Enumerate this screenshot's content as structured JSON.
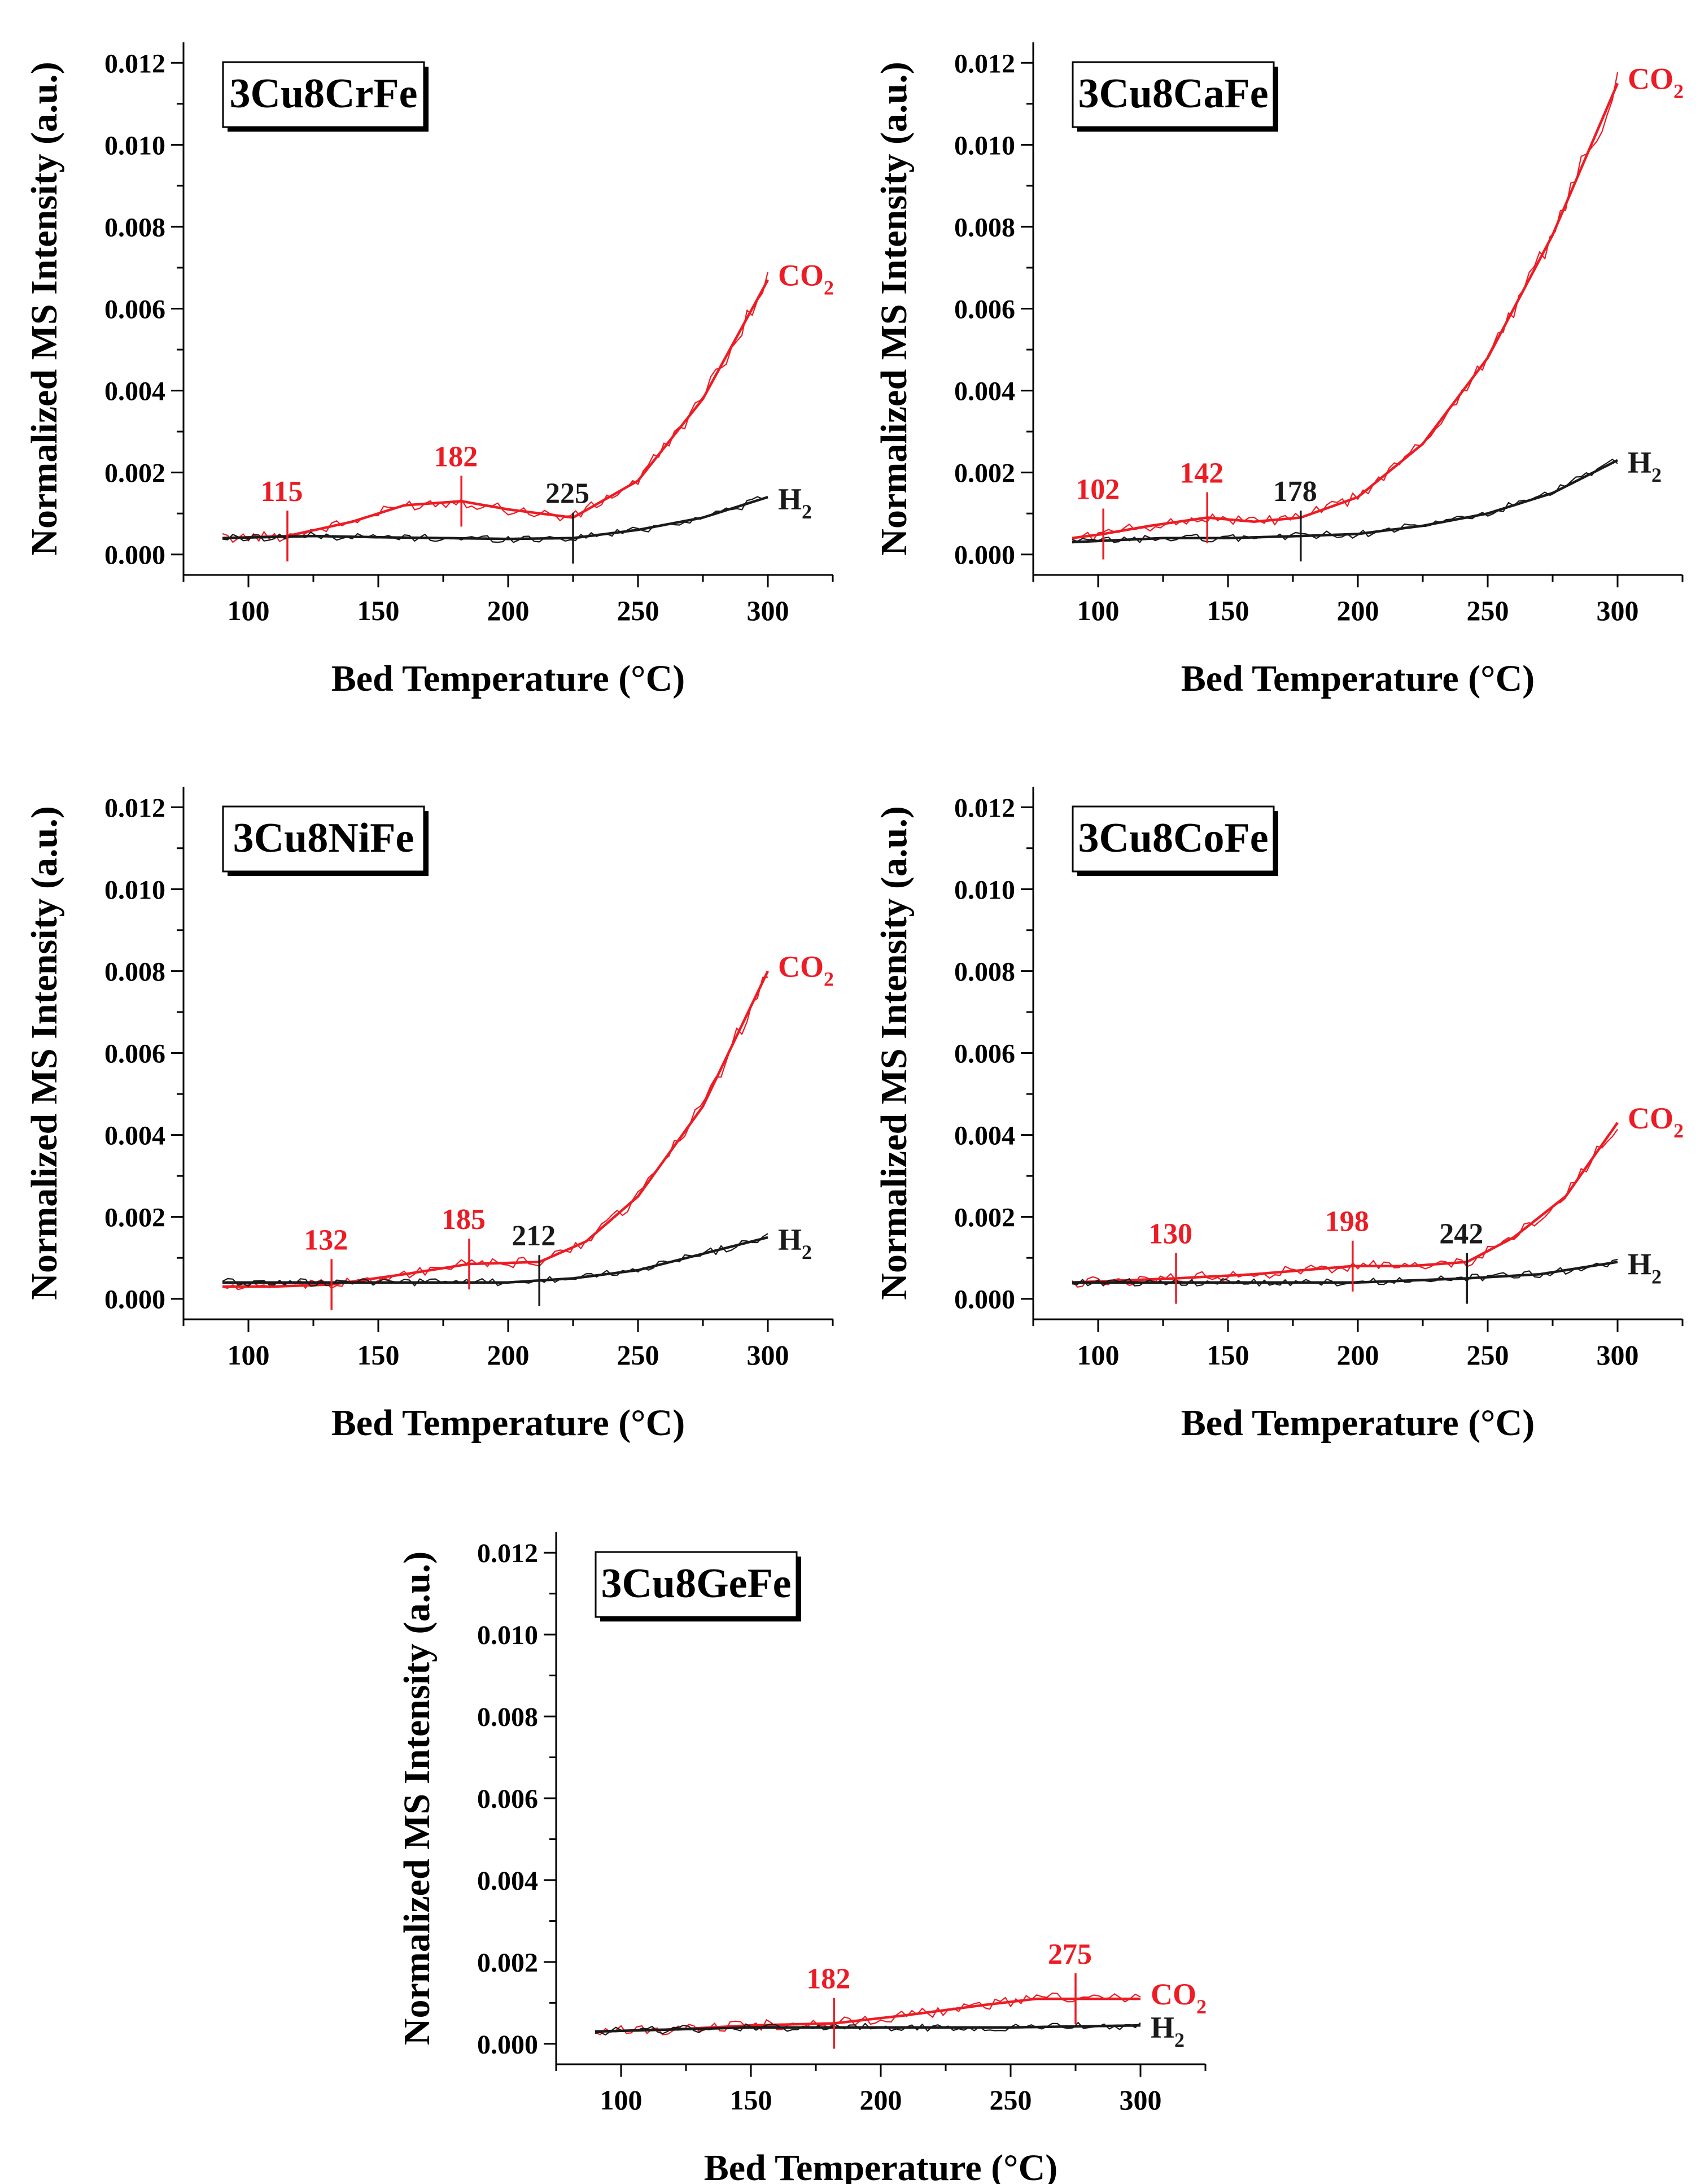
{
  "colors": {
    "co2": "#ed1c24",
    "h2": "#1a1a1a",
    "axis": "#000000"
  },
  "chart_data": [
    {
      "type": "line",
      "title": "3Cu8CrFe",
      "xlabel": "Bed Temperature (°C)",
      "ylabel": "Normalized MS Intensity (a.u.)",
      "xlim": [
        75,
        325
      ],
      "ylim": [
        -0.0005,
        0.0125
      ],
      "xticks": [
        100,
        150,
        200,
        250,
        300
      ],
      "yticks": [
        0.0,
        0.002,
        0.004,
        0.006,
        0.008,
        0.01,
        0.012
      ],
      "xtick_labels": [
        "100",
        "150",
        "200",
        "250",
        "300"
      ],
      "ytick_labels": [
        "0.000",
        "0.002",
        "0.004",
        "0.006",
        "0.008",
        "0.010",
        "0.012"
      ],
      "series": [
        {
          "name": "CO2",
          "label_main": "CO",
          "label_sub": "2",
          "color": "#ed1c24",
          "x": [
            90,
            115,
            140,
            160,
            182,
            200,
            225,
            250,
            275,
            300
          ],
          "y": [
            0.0004,
            0.00045,
            0.0008,
            0.0012,
            0.0013,
            0.0011,
            0.0009,
            0.0018,
            0.0038,
            0.0067
          ]
        },
        {
          "name": "H2",
          "label_main": "H",
          "label_sub": "2",
          "color": "#1a1a1a",
          "x": [
            90,
            125,
            150,
            175,
            200,
            225,
            250,
            275,
            300
          ],
          "y": [
            0.0004,
            0.00045,
            0.00042,
            0.0004,
            0.00038,
            0.0004,
            0.0006,
            0.0009,
            0.0014
          ]
        }
      ],
      "annotations": [
        {
          "x": 115,
          "text": "115",
          "series": "CO2"
        },
        {
          "x": 182,
          "text": "182",
          "series": "CO2"
        },
        {
          "x": 225,
          "text": "225",
          "series": "H2"
        }
      ]
    },
    {
      "type": "line",
      "title": "3Cu8CaFe",
      "xlabel": "Bed Temperature (°C)",
      "ylabel": "Normalized MS Intensity (a.u.)",
      "xlim": [
        75,
        325
      ],
      "ylim": [
        -0.0005,
        0.0125
      ],
      "xticks": [
        100,
        150,
        200,
        250,
        300
      ],
      "yticks": [
        0.0,
        0.002,
        0.004,
        0.006,
        0.008,
        0.01,
        0.012
      ],
      "xtick_labels": [
        "100",
        "150",
        "200",
        "250",
        "300"
      ],
      "ytick_labels": [
        "0.000",
        "0.002",
        "0.004",
        "0.006",
        "0.008",
        "0.010",
        "0.012"
      ],
      "series": [
        {
          "name": "CO2",
          "label_main": "CO",
          "label_sub": "2",
          "color": "#ed1c24",
          "x": [
            90,
            102,
            120,
            142,
            160,
            178,
            200,
            225,
            250,
            275,
            300
          ],
          "y": [
            0.0004,
            0.0005,
            0.0007,
            0.0009,
            0.0008,
            0.0009,
            0.0014,
            0.0027,
            0.0048,
            0.0078,
            0.0115
          ]
        },
        {
          "name": "H2",
          "label_main": "H",
          "label_sub": "2",
          "color": "#1a1a1a",
          "x": [
            90,
            125,
            150,
            178,
            200,
            225,
            250,
            275,
            300
          ],
          "y": [
            0.0003,
            0.0004,
            0.0004,
            0.00045,
            0.0005,
            0.0007,
            0.001,
            0.0015,
            0.0023
          ]
        }
      ],
      "annotations": [
        {
          "x": 102,
          "text": "102",
          "series": "CO2"
        },
        {
          "x": 142,
          "text": "142",
          "series": "CO2"
        },
        {
          "x": 178,
          "text": "178",
          "series": "H2"
        }
      ]
    },
    {
      "type": "line",
      "title": "3Cu8NiFe",
      "xlabel": "Bed Temperature (°C)",
      "ylabel": "Normalized MS Intensity (a.u.)",
      "xlim": [
        75,
        325
      ],
      "ylim": [
        -0.0005,
        0.0125
      ],
      "xticks": [
        100,
        150,
        200,
        250,
        300
      ],
      "yticks": [
        0.0,
        0.002,
        0.004,
        0.006,
        0.008,
        0.01,
        0.012
      ],
      "xtick_labels": [
        "100",
        "150",
        "200",
        "250",
        "300"
      ],
      "ytick_labels": [
        "0.000",
        "0.002",
        "0.004",
        "0.006",
        "0.008",
        "0.010",
        "0.012"
      ],
      "series": [
        {
          "name": "CO2",
          "label_main": "CO",
          "label_sub": "2",
          "color": "#ed1c24",
          "x": [
            90,
            110,
            132,
            160,
            185,
            212,
            230,
            250,
            275,
            300
          ],
          "y": [
            0.0003,
            0.0003,
            0.00035,
            0.0006,
            0.00085,
            0.0009,
            0.0014,
            0.0025,
            0.0047,
            0.008
          ]
        },
        {
          "name": "H2",
          "label_main": "H",
          "label_sub": "2",
          "color": "#1a1a1a",
          "x": [
            90,
            125,
            150,
            175,
            200,
            225,
            250,
            275,
            300
          ],
          "y": [
            0.0004,
            0.0004,
            0.0004,
            0.0004,
            0.0004,
            0.0005,
            0.0007,
            0.0011,
            0.0015
          ]
        }
      ],
      "annotations": [
        {
          "x": 132,
          "text": "132",
          "series": "CO2"
        },
        {
          "x": 185,
          "text": "185",
          "series": "CO2"
        },
        {
          "x": 212,
          "text": "212",
          "series": "H2"
        }
      ]
    },
    {
      "type": "line",
      "title": "3Cu8CoFe",
      "xlabel": "Bed Temperature (°C)",
      "ylabel": "Normalized MS Intensity (a.u.)",
      "xlim": [
        75,
        325
      ],
      "ylim": [
        -0.0005,
        0.0125
      ],
      "xticks": [
        100,
        150,
        200,
        250,
        300
      ],
      "yticks": [
        0.0,
        0.002,
        0.004,
        0.006,
        0.008,
        0.01,
        0.012
      ],
      "xtick_labels": [
        "100",
        "150",
        "200",
        "250",
        "300"
      ],
      "ytick_labels": [
        "0.000",
        "0.002",
        "0.004",
        "0.006",
        "0.008",
        "0.010",
        "0.012"
      ],
      "series": [
        {
          "name": "CO2",
          "label_main": "CO",
          "label_sub": "2",
          "color": "#ed1c24",
          "x": [
            90,
            130,
            160,
            198,
            220,
            242,
            260,
            280,
            300
          ],
          "y": [
            0.0004,
            0.0005,
            0.0006,
            0.0008,
            0.0008,
            0.0009,
            0.0015,
            0.0025,
            0.0043
          ]
        },
        {
          "name": "H2",
          "label_main": "H",
          "label_sub": "2",
          "color": "#1a1a1a",
          "x": [
            90,
            130,
            160,
            200,
            242,
            270,
            300
          ],
          "y": [
            0.0004,
            0.0004,
            0.0004,
            0.0004,
            0.0005,
            0.0006,
            0.0009
          ]
        }
      ],
      "annotations": [
        {
          "x": 130,
          "text": "130",
          "series": "CO2"
        },
        {
          "x": 198,
          "text": "198",
          "series": "CO2"
        },
        {
          "x": 242,
          "text": "242",
          "series": "H2"
        }
      ]
    },
    {
      "type": "line",
      "title": "3Cu8GeFe",
      "xlabel": "Bed Temperature (°C)",
      "ylabel": "Normalized MS Intensity (a.u.)",
      "xlim": [
        75,
        325
      ],
      "ylim": [
        -0.0005,
        0.0125
      ],
      "xticks": [
        100,
        150,
        200,
        250,
        300
      ],
      "yticks": [
        0.0,
        0.002,
        0.004,
        0.006,
        0.008,
        0.01,
        0.012
      ],
      "xtick_labels": [
        "100",
        "150",
        "200",
        "250",
        "300"
      ],
      "ytick_labels": [
        "0.000",
        "0.002",
        "0.004",
        "0.006",
        "0.008",
        "0.010",
        "0.012"
      ],
      "series": [
        {
          "name": "CO2",
          "label_main": "CO",
          "label_sub": "2",
          "color": "#ed1c24",
          "x": [
            90,
            120,
            150,
            182,
            210,
            240,
            260,
            275,
            300
          ],
          "y": [
            0.0003,
            0.00035,
            0.00045,
            0.0005,
            0.0007,
            0.00095,
            0.0011,
            0.0011,
            0.0011
          ]
        },
        {
          "name": "H2",
          "label_main": "H",
          "label_sub": "2",
          "color": "#1a1a1a",
          "x": [
            90,
            150,
            200,
            250,
            300
          ],
          "y": [
            0.0003,
            0.0004,
            0.0004,
            0.0004,
            0.00045
          ]
        }
      ],
      "annotations": [
        {
          "x": 182,
          "text": "182",
          "series": "CO2"
        },
        {
          "x": 275,
          "text": "275",
          "series": "CO2"
        }
      ]
    }
  ]
}
